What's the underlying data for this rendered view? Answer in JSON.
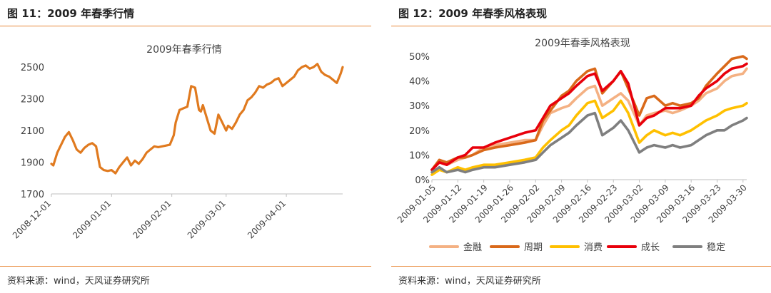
{
  "left": {
    "figure_title": "图 11：2009 年春季行情",
    "source": "资料来源：wind，天风证券研究所"
  },
  "right": {
    "figure_title": "图 12：2009 年春季风格表现",
    "source": "资料来源：wind，天风证券研究所"
  },
  "colors": {
    "accent_rule": "#e8893a",
    "index_line": "#e07a1f",
    "金融": "#f4b183",
    "周期": "#d9691a",
    "消费": "#ffc000",
    "成长": "#e8000b",
    "稳定": "#7f7f7f"
  },
  "chart_data": [
    {
      "type": "line",
      "title": "2009年春季行情",
      "xlabel": "",
      "ylabel": "",
      "x_ticks": [
        "2008-12-01",
        "2009-01-01",
        "2009-02-01",
        "2009-03-01",
        "2009-04-01"
      ],
      "y_ticks": [
        "1700",
        "1900",
        "2100",
        "2300",
        "2500"
      ],
      "ylim": [
        1700,
        2550
      ],
      "grid": false,
      "series": [
        {
          "x": [
            "2008-12-01",
            "2008-12-02",
            "2008-12-04",
            "2008-12-06",
            "2008-12-08",
            "2008-12-10",
            "2008-12-12",
            "2008-12-14",
            "2008-12-16",
            "2008-12-18",
            "2008-12-20",
            "2008-12-22",
            "2008-12-24",
            "2008-12-26",
            "2008-12-28",
            "2008-12-30",
            "2009-01-01",
            "2009-01-03",
            "2009-01-05",
            "2009-01-07",
            "2009-01-09",
            "2009-01-11",
            "2009-01-13",
            "2009-01-15",
            "2009-01-17",
            "2009-01-19",
            "2009-01-21",
            "2009-01-23",
            "2009-01-25",
            "2009-01-27",
            "2009-01-29",
            "2009-01-31",
            "2009-02-02",
            "2009-02-03",
            "2009-02-05",
            "2009-02-07",
            "2009-02-09",
            "2009-02-11",
            "2009-02-13",
            "2009-02-15",
            "2009-02-16",
            "2009-02-17",
            "2009-02-19",
            "2009-02-21",
            "2009-02-23",
            "2009-02-25",
            "2009-02-27",
            "2009-03-01",
            "2009-03-02",
            "2009-03-04",
            "2009-03-06",
            "2009-03-08",
            "2009-03-10",
            "2009-03-12",
            "2009-03-14",
            "2009-03-16",
            "2009-03-18",
            "2009-03-20",
            "2009-03-22",
            "2009-03-24",
            "2009-03-26",
            "2009-03-28",
            "2009-03-30",
            "2009-04-01",
            "2009-04-03",
            "2009-04-05",
            "2009-04-07",
            "2009-04-09",
            "2009-04-11",
            "2009-04-13",
            "2009-04-15",
            "2009-04-17",
            "2009-04-19",
            "2009-04-21",
            "2009-04-23",
            "2009-04-25",
            "2009-04-27",
            "2009-04-29",
            "2009-04-30"
          ],
          "values": [
            1890,
            1880,
            1960,
            2010,
            2060,
            2090,
            2040,
            1980,
            1960,
            1990,
            2010,
            2020,
            2000,
            1870,
            1850,
            1845,
            1850,
            1830,
            1870,
            1900,
            1930,
            1880,
            1910,
            1890,
            1920,
            1960,
            1980,
            2000,
            1995,
            2000,
            2005,
            2010,
            2070,
            2150,
            2230,
            2240,
            2250,
            2380,
            2370,
            2230,
            2220,
            2260,
            2180,
            2100,
            2080,
            2200,
            2150,
            2100,
            2130,
            2110,
            2150,
            2200,
            2230,
            2290,
            2310,
            2340,
            2380,
            2370,
            2390,
            2400,
            2420,
            2430,
            2380,
            2400,
            2420,
            2440,
            2480,
            2500,
            2510,
            2490,
            2500,
            2520,
            2470,
            2450,
            2440,
            2420,
            2400,
            2460,
            2500
          ]
        }
      ]
    },
    {
      "type": "line",
      "title": "2009年春季风格表现",
      "xlabel": "",
      "ylabel": "",
      "x_ticks": [
        "2009-01-05",
        "2009-01-12",
        "2009-01-19",
        "2009-01-26",
        "2009-02-02",
        "2009-02-09",
        "2009-02-16",
        "2009-02-23",
        "2009-03-02",
        "2009-03-09",
        "2009-03-16",
        "2009-03-23",
        "2009-03-30"
      ],
      "y_ticks": [
        "0%",
        "10%",
        "20%",
        "30%",
        "40%",
        "50%"
      ],
      "ylim": [
        0,
        50
      ],
      "legend_position": "bottom",
      "grid": false,
      "series": [
        {
          "name": "金融",
          "x": [
            "2009-01-05",
            "2009-01-07",
            "2009-01-09",
            "2009-01-12",
            "2009-01-14",
            "2009-01-16",
            "2009-01-19",
            "2009-01-22",
            "2009-01-26",
            "2009-01-30",
            "2009-02-02",
            "2009-02-04",
            "2009-02-06",
            "2009-02-09",
            "2009-02-11",
            "2009-02-13",
            "2009-02-16",
            "2009-02-18",
            "2009-02-20",
            "2009-02-23",
            "2009-02-25",
            "2009-02-27",
            "2009-03-02",
            "2009-03-04",
            "2009-03-06",
            "2009-03-09",
            "2009-03-11",
            "2009-03-13",
            "2009-03-16",
            "2009-03-18",
            "2009-03-20",
            "2009-03-23",
            "2009-03-25",
            "2009-03-27",
            "2009-03-30",
            "2009-03-31"
          ],
          "values": [
            4,
            7,
            6,
            8,
            9,
            10,
            13,
            14,
            15,
            16,
            16,
            22,
            27,
            29,
            30,
            33,
            37,
            38,
            30,
            33,
            35,
            32,
            22,
            26,
            27,
            28,
            27,
            28,
            30,
            32,
            35,
            37,
            40,
            42,
            43,
            45
          ]
        },
        {
          "name": "周期",
          "x": [
            "2009-01-05",
            "2009-01-07",
            "2009-01-09",
            "2009-01-12",
            "2009-01-14",
            "2009-01-16",
            "2009-01-19",
            "2009-01-22",
            "2009-01-26",
            "2009-01-30",
            "2009-02-02",
            "2009-02-04",
            "2009-02-06",
            "2009-02-09",
            "2009-02-11",
            "2009-02-13",
            "2009-02-16",
            "2009-02-18",
            "2009-02-20",
            "2009-02-23",
            "2009-02-25",
            "2009-02-27",
            "2009-03-02",
            "2009-03-04",
            "2009-03-06",
            "2009-03-09",
            "2009-03-11",
            "2009-03-13",
            "2009-03-16",
            "2009-03-18",
            "2009-03-20",
            "2009-03-23",
            "2009-03-25",
            "2009-03-27",
            "2009-03-30",
            "2009-03-31"
          ],
          "values": [
            4,
            8,
            7,
            9,
            9,
            10,
            12,
            13,
            14,
            15,
            16,
            24,
            28,
            34,
            36,
            40,
            44,
            45,
            35,
            40,
            44,
            37,
            26,
            33,
            34,
            30,
            31,
            30,
            31,
            33,
            38,
            43,
            46,
            49,
            50,
            49
          ]
        },
        {
          "name": "消费",
          "x": [
            "2009-01-05",
            "2009-01-07",
            "2009-01-09",
            "2009-01-12",
            "2009-01-14",
            "2009-01-16",
            "2009-01-19",
            "2009-01-22",
            "2009-01-26",
            "2009-01-30",
            "2009-02-02",
            "2009-02-04",
            "2009-02-06",
            "2009-02-09",
            "2009-02-11",
            "2009-02-13",
            "2009-02-16",
            "2009-02-18",
            "2009-02-20",
            "2009-02-23",
            "2009-02-25",
            "2009-02-27",
            "2009-03-02",
            "2009-03-04",
            "2009-03-06",
            "2009-03-09",
            "2009-03-11",
            "2009-03-13",
            "2009-03-16",
            "2009-03-18",
            "2009-03-20",
            "2009-03-23",
            "2009-03-25",
            "2009-03-27",
            "2009-03-30",
            "2009-03-31"
          ],
          "values": [
            2,
            4,
            3,
            5,
            4,
            5,
            6,
            6,
            7,
            8,
            9,
            13,
            16,
            20,
            22,
            26,
            31,
            32,
            25,
            28,
            32,
            27,
            15,
            18,
            20,
            18,
            19,
            18,
            20,
            22,
            24,
            26,
            28,
            29,
            30,
            31
          ]
        },
        {
          "name": "成长",
          "x": [
            "2009-01-05",
            "2009-01-07",
            "2009-01-09",
            "2009-01-12",
            "2009-01-14",
            "2009-01-16",
            "2009-01-19",
            "2009-01-22",
            "2009-01-26",
            "2009-01-30",
            "2009-02-02",
            "2009-02-04",
            "2009-02-06",
            "2009-02-09",
            "2009-02-11",
            "2009-02-13",
            "2009-02-16",
            "2009-02-18",
            "2009-02-20",
            "2009-02-23",
            "2009-02-25",
            "2009-02-27",
            "2009-03-02",
            "2009-03-04",
            "2009-03-06",
            "2009-03-09",
            "2009-03-11",
            "2009-03-13",
            "2009-03-16",
            "2009-03-18",
            "2009-03-20",
            "2009-03-23",
            "2009-03-25",
            "2009-03-27",
            "2009-03-30",
            "2009-03-31"
          ],
          "values": [
            4,
            7,
            6,
            9,
            10,
            13,
            13,
            15,
            17,
            19,
            20,
            25,
            30,
            33,
            35,
            38,
            42,
            43,
            36,
            40,
            44,
            39,
            22,
            25,
            26,
            29,
            29,
            29,
            30,
            34,
            37,
            40,
            43,
            45,
            46,
            47
          ]
        },
        {
          "name": "稳定",
          "x": [
            "2009-01-05",
            "2009-01-07",
            "2009-01-09",
            "2009-01-12",
            "2009-01-14",
            "2009-01-16",
            "2009-01-19",
            "2009-01-22",
            "2009-01-26",
            "2009-01-30",
            "2009-02-02",
            "2009-02-04",
            "2009-02-06",
            "2009-02-09",
            "2009-02-11",
            "2009-02-13",
            "2009-02-16",
            "2009-02-18",
            "2009-02-20",
            "2009-02-23",
            "2009-02-25",
            "2009-02-27",
            "2009-03-02",
            "2009-03-04",
            "2009-03-06",
            "2009-03-09",
            "2009-03-11",
            "2009-03-13",
            "2009-03-16",
            "2009-03-18",
            "2009-03-20",
            "2009-03-23",
            "2009-03-25",
            "2009-03-27",
            "2009-03-30",
            "2009-03-31"
          ],
          "values": [
            3,
            5,
            3,
            4,
            3,
            4,
            5,
            5,
            6,
            7,
            8,
            11,
            14,
            17,
            19,
            22,
            26,
            27,
            18,
            21,
            24,
            20,
            11,
            13,
            14,
            13,
            14,
            13,
            14,
            16,
            18,
            20,
            20,
            22,
            24,
            25
          ]
        }
      ]
    }
  ]
}
